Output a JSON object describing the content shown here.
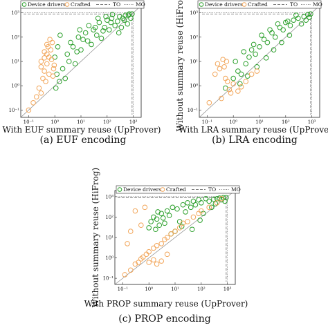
{
  "figure": {
    "captions": [
      "(a) EUF encoding",
      "(b) LRA encoding",
      "(c) PROP encoding"
    ],
    "legend": {
      "items": [
        "Device drivers",
        "Crafted",
        "TO",
        "MO"
      ],
      "colors": {
        "device": "#2ca02c",
        "crafted": "#f2a65a",
        "to": "#555555",
        "mo": "#555555"
      }
    }
  },
  "chart_data": [
    {
      "type": "scatter",
      "title": "",
      "xlabel": "With EUF summary reuse (UpProver)",
      "ylabel": "",
      "scale": "log",
      "xlim": [
        0.05,
        2000
      ],
      "ylim": [
        0.05,
        2000
      ],
      "x_ticks": [
        "10⁻¹",
        "10⁰",
        "10¹",
        "10²",
        "10³"
      ],
      "y_ticks": [
        "10⁻¹",
        "10⁰",
        "10¹",
        "10²",
        "10³"
      ],
      "reference_lines": {
        "diagonal": true,
        "timeout": 900,
        "memout": 1000
      },
      "series": [
        {
          "name": "Device drivers",
          "points": [
            [
              1.2,
              3
            ],
            [
              2,
              5
            ],
            [
              3,
              20
            ],
            [
              5,
              40
            ],
            [
              8,
              100
            ],
            [
              15,
              150
            ],
            [
              20,
              300
            ],
            [
              30,
              200
            ],
            [
              50,
              400
            ],
            [
              80,
              250
            ],
            [
              100,
              500
            ],
            [
              150,
              600
            ],
            [
              200,
              300
            ],
            [
              300,
              700
            ],
            [
              500,
              800
            ],
            [
              700,
              900
            ],
            [
              900,
              900
            ],
            [
              1.5,
              1.5
            ],
            [
              1,
              15
            ],
            [
              4,
              60
            ],
            [
              6,
              8
            ],
            [
              10,
              30
            ],
            [
              12,
              80
            ],
            [
              25,
              50
            ],
            [
              40,
              120
            ],
            [
              60,
              90
            ],
            [
              120,
              200
            ],
            [
              250,
              450
            ],
            [
              400,
              600
            ],
            [
              600,
              350
            ],
            [
              1.1,
              0.8
            ],
            [
              2.5,
              2
            ],
            [
              3.5,
              10
            ],
            [
              7,
              25
            ],
            [
              18,
              70
            ],
            [
              35,
              250
            ],
            [
              70,
              180
            ],
            [
              140,
              400
            ],
            [
              280,
              150
            ],
            [
              450,
              500
            ],
            [
              800,
              600
            ],
            [
              1.3,
              40
            ],
            [
              1.6,
              120
            ],
            [
              9,
              200
            ],
            [
              45,
              600
            ],
            [
              90,
              700
            ],
            [
              160,
              850
            ],
            [
              350,
              250
            ],
            [
              650,
              800
            ]
          ]
        },
        {
          "name": "Crafted",
          "points": [
            [
              0.1,
              0.1
            ],
            [
              0.15,
              0.2
            ],
            [
              0.2,
              0.35
            ],
            [
              0.3,
              0.5
            ],
            [
              0.35,
              2
            ],
            [
              0.4,
              4
            ],
            [
              0.5,
              8
            ],
            [
              0.5,
              20
            ],
            [
              0.6,
              15
            ],
            [
              0.7,
              30
            ],
            [
              0.8,
              60
            ],
            [
              0.9,
              5
            ],
            [
              0.3,
              10
            ],
            [
              0.4,
              25
            ],
            [
              0.6,
              3
            ],
            [
              0.25,
              0.8
            ],
            [
              0.45,
              1.5
            ],
            [
              0.55,
              40
            ],
            [
              0.65,
              80
            ],
            [
              0.75,
              12
            ],
            [
              0.85,
              2.5
            ],
            [
              0.95,
              7
            ],
            [
              0.4,
              14
            ],
            [
              0.5,
              50
            ],
            [
              0.3,
              6
            ]
          ]
        }
      ]
    },
    {
      "type": "scatter",
      "title": "",
      "xlabel": "With LRA summary reuse (UpProver)",
      "ylabel": "Without summary reuse (HiFrog)",
      "scale": "log",
      "xlim": [
        0.05,
        2000
      ],
      "ylim": [
        0.05,
        2000
      ],
      "x_ticks": [
        "10⁻¹",
        "10⁰",
        "10¹",
        "10²",
        "10³"
      ],
      "y_ticks": [
        "10⁻¹",
        "10⁰",
        "10¹",
        "10²",
        "10³"
      ],
      "reference_lines": {
        "diagonal": true,
        "timeout": 900,
        "memout": 1000
      },
      "series": [
        {
          "name": "Device drivers",
          "points": [
            [
              0.5,
              0.8
            ],
            [
              1,
              2
            ],
            [
              1.5,
              4
            ],
            [
              2,
              3
            ],
            [
              3,
              8
            ],
            [
              4,
              15
            ],
            [
              5,
              30
            ],
            [
              7,
              20
            ],
            [
              10,
              40
            ],
            [
              15,
              80
            ],
            [
              20,
              60
            ],
            [
              30,
              150
            ],
            [
              40,
              100
            ],
            [
              60,
              250
            ],
            [
              80,
              200
            ],
            [
              100,
              400
            ],
            [
              150,
              300
            ],
            [
              200,
              500
            ],
            [
              300,
              600
            ],
            [
              500,
              700
            ],
            [
              700,
              850
            ],
            [
              900,
              900
            ],
            [
              1.2,
              10
            ],
            [
              2.5,
              25
            ],
            [
              6,
              50
            ],
            [
              12,
              120
            ],
            [
              25,
              200
            ],
            [
              50,
              350
            ],
            [
              120,
              450
            ],
            [
              250,
              800
            ],
            [
              400,
              350
            ],
            [
              600,
              500
            ],
            [
              800,
              650
            ],
            [
              1.8,
              1.2
            ],
            [
              3.5,
              2.5
            ],
            [
              8,
              6
            ],
            [
              18,
              14
            ],
            [
              35,
              30
            ],
            [
              70,
              60
            ],
            [
              140,
              120
            ]
          ]
        },
        {
          "name": "Crafted",
          "points": [
            [
              0.12,
              0.2
            ],
            [
              0.2,
              3
            ],
            [
              0.25,
              8
            ],
            [
              0.3,
              5
            ],
            [
              0.4,
              12
            ],
            [
              0.5,
              2
            ],
            [
              0.6,
              1.5
            ],
            [
              0.7,
              0.7
            ],
            [
              0.8,
              0.5
            ],
            [
              1,
              1.2
            ],
            [
              1.5,
              0.6
            ],
            [
              2,
              0.9
            ],
            [
              3,
              1.5
            ],
            [
              0.35,
              0.3
            ],
            [
              0.45,
              6
            ],
            [
              0.55,
              10
            ],
            [
              5,
              3
            ],
            [
              8,
              4
            ]
          ]
        }
      ]
    },
    {
      "type": "scatter",
      "title": "",
      "xlabel": "With PROP summary reuse (UpProver)",
      "ylabel": "Without summary reuse (HiFrog)",
      "scale": "log",
      "xlim": [
        0.05,
        2000
      ],
      "ylim": [
        0.05,
        2000
      ],
      "x_ticks": [
        "10⁻¹",
        "10⁰",
        "10¹",
        "10²",
        "10³"
      ],
      "y_ticks": [
        "10⁻¹",
        "10⁰",
        "10¹",
        "10²",
        "10³"
      ],
      "reference_lines": {
        "diagonal": true,
        "timeout": 900,
        "memout": 1000
      },
      "series": [
        {
          "name": "Device drivers",
          "points": [
            [
              1,
              30
            ],
            [
              1.2,
              60
            ],
            [
              1.5,
              100
            ],
            [
              2,
              80
            ],
            [
              2.5,
              40
            ],
            [
              3,
              150
            ],
            [
              3.5,
              90
            ],
            [
              4,
              50
            ],
            [
              5,
              200
            ],
            [
              6,
              120
            ],
            [
              8,
              300
            ],
            [
              10,
              20
            ],
            [
              12,
              250
            ],
            [
              15,
              60
            ],
            [
              20,
              400
            ],
            [
              25,
              180
            ],
            [
              30,
              500
            ],
            [
              40,
              300
            ],
            [
              50,
              600
            ],
            [
              60,
              400
            ],
            [
              80,
              700
            ],
            [
              100,
              500
            ],
            [
              150,
              800
            ],
            [
              200,
              600
            ],
            [
              300,
              750
            ],
            [
              400,
              800
            ],
            [
              500,
              850
            ],
            [
              700,
              900
            ],
            [
              900,
              900
            ],
            [
              1.8,
              25
            ],
            [
              2.2,
              180
            ],
            [
              7,
              15
            ],
            [
              18,
              35
            ],
            [
              45,
              25
            ],
            [
              90,
              70
            ],
            [
              120,
              150
            ],
            [
              250,
              300
            ],
            [
              350,
              450
            ],
            [
              600,
              700
            ],
            [
              800,
              600
            ]
          ]
        },
        {
          "name": "Crafted",
          "points": [
            [
              0.12,
              0.15
            ],
            [
              0.2,
              0.25
            ],
            [
              0.3,
              0.5
            ],
            [
              0.4,
              0.6
            ],
            [
              0.5,
              0.9
            ],
            [
              0.6,
              1.1
            ],
            [
              0.8,
              1.5
            ],
            [
              1,
              2
            ],
            [
              1.5,
              3
            ],
            [
              2,
              4
            ],
            [
              3,
              5
            ],
            [
              4,
              8
            ],
            [
              5,
              10
            ],
            [
              7,
              15
            ],
            [
              10,
              20
            ],
            [
              15,
              30
            ],
            [
              20,
              50
            ],
            [
              30,
              60
            ],
            [
              50,
              100
            ],
            [
              80,
              150
            ],
            [
              100,
              200
            ],
            [
              200,
              300
            ],
            [
              400,
              500
            ],
            [
              600,
              800
            ],
            [
              0.15,
              5
            ],
            [
              0.2,
              20
            ],
            [
              0.3,
              200
            ],
            [
              0.5,
              40
            ],
            [
              0.7,
              300
            ],
            [
              1,
              0.6
            ],
            [
              1.5,
              0.8
            ],
            [
              2,
              0.5
            ],
            [
              3,
              0.7
            ],
            [
              5,
              1.5
            ]
          ]
        }
      ]
    }
  ]
}
